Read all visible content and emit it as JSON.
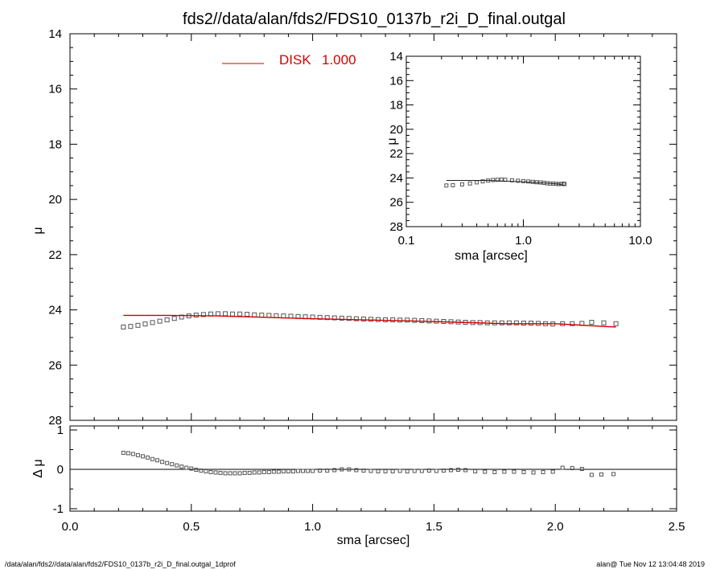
{
  "title": "fds2//data/alan/fds2/FDS10_0137b_r2i_D_final.outgal",
  "footer": {
    "left": "/data/alan/fds2//data/alan/fds2/FDS10_0137b_r2i_D_final.outgal_1dprof",
    "right": "alan@  Tue Nov 12 13:04:48 2019"
  },
  "colors": {
    "model": "#d40000",
    "data": "#555555",
    "axes": "#000000"
  },
  "chart_data": [
    {
      "panel": "main",
      "type": "line",
      "xlabel": "sma [arcsec]",
      "ylabel": "μ",
      "xlim": [
        0.0,
        2.5
      ],
      "ylim": [
        28,
        14
      ],
      "y_inverted": true,
      "xticks": [
        "0.0",
        "0.5",
        "1.0",
        "1.5",
        "2.0",
        "2.5"
      ],
      "yticks": [
        "14",
        "16",
        "18",
        "20",
        "22",
        "24",
        "26",
        "28"
      ],
      "legend": {
        "label": "DISK",
        "value": "1.000",
        "position": "top-center"
      },
      "series": [
        {
          "name": "DISK",
          "style": "line",
          "x": [
            0.22,
            0.4,
            0.6,
            0.8,
            1.0,
            1.2,
            1.4,
            1.6,
            1.8,
            2.0,
            2.1,
            2.2,
            2.25
          ],
          "y": [
            24.2,
            24.2,
            24.22,
            24.27,
            24.32,
            24.36,
            24.4,
            24.45,
            24.5,
            24.5,
            24.55,
            24.6,
            24.62
          ]
        },
        {
          "style": "markers",
          "x": [
            0.22,
            0.25,
            0.28,
            0.31,
            0.34,
            0.37,
            0.4,
            0.43,
            0.46,
            0.49,
            0.52,
            0.55,
            0.58,
            0.61,
            0.64,
            0.67,
            0.7,
            0.73,
            0.76,
            0.79,
            0.82,
            0.85,
            0.88,
            0.91,
            0.94,
            0.97,
            1.0,
            1.03,
            1.06,
            1.09,
            1.12,
            1.15,
            1.18,
            1.21,
            1.24,
            1.27,
            1.3,
            1.33,
            1.36,
            1.39,
            1.42,
            1.45,
            1.48,
            1.51,
            1.54,
            1.57,
            1.6,
            1.63,
            1.66,
            1.69,
            1.72,
            1.75,
            1.78,
            1.81,
            1.84,
            1.87,
            1.9,
            1.93,
            1.96,
            1.99,
            2.03,
            2.07,
            2.11,
            2.15,
            2.2,
            2.25
          ],
          "y": [
            24.62,
            24.6,
            24.56,
            24.51,
            24.46,
            24.41,
            24.36,
            24.31,
            24.26,
            24.22,
            24.19,
            24.17,
            24.15,
            24.14,
            24.14,
            24.15,
            24.15,
            24.16,
            24.18,
            24.19,
            24.2,
            24.21,
            24.22,
            24.23,
            24.24,
            24.25,
            24.26,
            24.27,
            24.28,
            24.29,
            24.3,
            24.31,
            24.32,
            24.33,
            24.34,
            24.35,
            24.36,
            24.36,
            24.37,
            24.37,
            24.38,
            24.39,
            24.4,
            24.41,
            24.42,
            24.43,
            24.44,
            24.45,
            24.46,
            24.46,
            24.47,
            24.47,
            24.47,
            24.47,
            24.47,
            24.48,
            24.48,
            24.49,
            24.5,
            24.51,
            24.5,
            24.5,
            24.49,
            24.45,
            24.47,
            24.5
          ]
        }
      ]
    },
    {
      "panel": "inset",
      "type": "line",
      "xlabel": "sma [arcsec]",
      "ylabel": "μ",
      "xscale": "log",
      "xlim": [
        0.1,
        10.0
      ],
      "ylim": [
        28,
        14
      ],
      "y_inverted": true,
      "xticks": [
        "0.1",
        "1.0",
        "10.0"
      ],
      "yticks": [
        "14",
        "16",
        "18",
        "20",
        "22",
        "24",
        "26",
        "28"
      ],
      "series": [
        {
          "style": "line",
          "x": [
            0.22,
            0.5,
            1.0,
            1.5,
            2.0,
            2.25
          ],
          "y": [
            24.2,
            24.2,
            24.32,
            24.42,
            24.5,
            24.62
          ]
        },
        {
          "style": "markers",
          "x": [
            0.22,
            0.25,
            0.3,
            0.35,
            0.4,
            0.45,
            0.5,
            0.55,
            0.6,
            0.65,
            0.7,
            0.8,
            0.9,
            1.0,
            1.1,
            1.2,
            1.3,
            1.4,
            1.5,
            1.6,
            1.7,
            1.8,
            1.9,
            2.0,
            2.1,
            2.2,
            2.25
          ],
          "y": [
            24.62,
            24.6,
            24.53,
            24.45,
            24.36,
            24.28,
            24.21,
            24.17,
            24.15,
            24.14,
            24.15,
            24.19,
            24.23,
            24.26,
            24.29,
            24.32,
            24.35,
            24.37,
            24.4,
            24.44,
            24.46,
            24.47,
            24.48,
            24.5,
            24.49,
            24.47,
            24.5
          ]
        }
      ]
    },
    {
      "panel": "residual",
      "type": "scatter",
      "xlabel": "sma [arcsec]",
      "ylabel": "Δ μ",
      "xlim": [
        0.0,
        2.5
      ],
      "ylim": [
        -1,
        1
      ],
      "yticks": [
        "1",
        "0",
        "-1"
      ],
      "reference_line": 0,
      "series": [
        {
          "style": "markers",
          "x": [
            0.22,
            0.24,
            0.26,
            0.28,
            0.3,
            0.32,
            0.34,
            0.36,
            0.38,
            0.4,
            0.42,
            0.44,
            0.46,
            0.48,
            0.5,
            0.52,
            0.54,
            0.56,
            0.58,
            0.6,
            0.62,
            0.64,
            0.66,
            0.68,
            0.7,
            0.72,
            0.74,
            0.76,
            0.78,
            0.8,
            0.82,
            0.84,
            0.86,
            0.88,
            0.9,
            0.92,
            0.94,
            0.96,
            0.98,
            1.0,
            1.03,
            1.06,
            1.09,
            1.12,
            1.15,
            1.18,
            1.21,
            1.24,
            1.27,
            1.3,
            1.33,
            1.36,
            1.39,
            1.42,
            1.45,
            1.48,
            1.51,
            1.54,
            1.57,
            1.6,
            1.63,
            1.67,
            1.71,
            1.75,
            1.79,
            1.83,
            1.87,
            1.91,
            1.95,
            1.99,
            2.03,
            2.07,
            2.11,
            2.15,
            2.19,
            2.24
          ],
          "y": [
            0.42,
            0.41,
            0.39,
            0.36,
            0.33,
            0.3,
            0.26,
            0.23,
            0.19,
            0.16,
            0.13,
            0.1,
            0.07,
            0.04,
            0.02,
            -0.01,
            -0.03,
            -0.05,
            -0.07,
            -0.08,
            -0.09,
            -0.1,
            -0.1,
            -0.1,
            -0.1,
            -0.09,
            -0.09,
            -0.08,
            -0.08,
            -0.07,
            -0.07,
            -0.06,
            -0.06,
            -0.05,
            -0.05,
            -0.05,
            -0.04,
            -0.04,
            -0.04,
            -0.04,
            -0.03,
            -0.03,
            -0.02,
            0.0,
            0.0,
            -0.02,
            -0.03,
            -0.04,
            -0.05,
            -0.05,
            -0.05,
            -0.04,
            -0.05,
            -0.04,
            -0.04,
            -0.03,
            -0.04,
            -0.03,
            -0.02,
            -0.01,
            -0.02,
            -0.05,
            -0.06,
            -0.07,
            -0.06,
            -0.06,
            -0.07,
            -0.08,
            -0.07,
            -0.06,
            0.04,
            0.03,
            0.01,
            -0.14,
            -0.13,
            -0.12
          ]
        }
      ]
    }
  ]
}
